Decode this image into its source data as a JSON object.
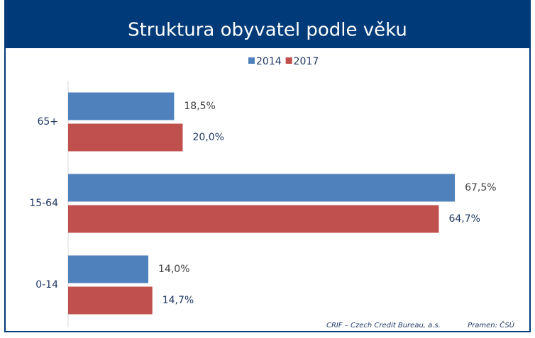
{
  "chart_data": {
    "type": "hbar",
    "title": "Struktura obyvatel podle věku",
    "categories": [
      "65+",
      "15-64",
      "0-14"
    ],
    "series": [
      {
        "name": "2014",
        "color": "#4f81bd",
        "values": [
          18.5,
          67.5,
          14.0
        ],
        "value_labels": [
          "18,5%",
          "67,5%",
          "14,0%"
        ]
      },
      {
        "name": "2017",
        "color": "#c0504d",
        "values": [
          20.0,
          64.7,
          14.7
        ],
        "value_labels": [
          "20,0%",
          "64,7%",
          "14,7%"
        ]
      }
    ],
    "xlim": [
      0,
      80
    ],
    "legend": "top",
    "notes": [
      "CRIF – Czech Credit Bureau, a.s.",
      "Pramen: ČSÚ"
    ]
  }
}
